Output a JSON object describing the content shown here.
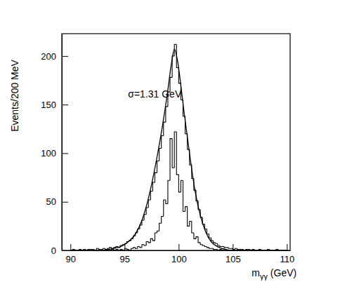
{
  "chart_data": {
    "type": "histogram",
    "annotation": "σ=1.31 GeV",
    "x_label": "mγγ (GeV)",
    "y_label": "Events/200 MeV",
    "xlim": [
      89.2,
      110.3
    ],
    "xticks": [
      90,
      95,
      100,
      105,
      110
    ],
    "ylim": [
      0,
      223
    ],
    "yticks": [
      0,
      50,
      100,
      150,
      200
    ],
    "tick_labels": true,
    "bins": [
      90,
      90.2,
      90.4,
      90.6,
      90.8,
      91,
      91.2,
      91.4,
      91.6,
      91.8,
      92,
      92.2,
      92.4,
      92.6,
      92.8,
      93,
      93.2,
      93.4,
      93.6,
      93.8,
      94,
      94.2,
      94.4,
      94.6,
      94.8,
      95,
      95.2,
      95.4,
      95.6,
      95.8,
      96,
      96.2,
      96.4,
      96.6,
      96.8,
      97,
      97.2,
      97.4,
      97.6,
      97.8,
      98,
      98.2,
      98.4,
      98.6,
      98.8,
      99,
      99.2,
      99.4,
      99.6,
      99.8,
      100,
      100.2,
      100.4,
      100.6,
      100.8,
      101,
      101.2,
      101.4,
      101.6,
      101.8,
      102,
      102.2,
      102.4,
      102.6,
      102.8,
      103,
      103.2,
      103.4,
      103.6,
      103.8,
      104,
      104.2,
      104.4,
      104.6,
      104.8,
      105,
      105.2,
      105.4,
      105.6,
      105.8,
      106,
      106.2,
      106.4,
      106.6,
      106.8,
      107,
      107.2,
      107.4,
      107.6,
      107.8,
      108,
      108.2,
      108.4,
      108.6,
      108.8,
      109,
      109.2,
      109.4,
      109.6,
      109.8,
      110
    ],
    "series": [
      {
        "type": "histogram",
        "color": "#000000",
        "values": [
          0,
          1,
          0,
          0,
          1,
          0,
          1,
          0,
          1,
          1,
          1,
          0,
          2,
          1,
          1,
          2,
          1,
          2,
          3,
          2,
          3,
          4,
          3,
          5,
          6,
          7,
          9,
          10,
          12,
          15,
          18,
          22,
          26,
          31,
          37,
          44,
          52,
          61,
          70,
          80,
          92,
          105,
          118,
          132,
          148,
          163,
          178,
          200,
          212,
          188,
          172,
          155,
          138,
          120,
          104,
          88,
          74,
          62,
          51,
          42,
          34,
          27,
          22,
          17,
          13,
          10,
          8,
          7,
          5,
          4,
          4,
          3,
          3,
          2,
          2,
          1,
          2,
          1,
          1,
          1,
          0,
          1,
          1,
          0,
          1,
          0,
          0,
          1,
          0,
          0,
          0,
          1,
          0,
          0,
          0,
          1,
          0,
          0,
          0,
          0
        ]
      },
      {
        "type": "histogram",
        "color": "#000000",
        "values": [
          0,
          0,
          0,
          0,
          0,
          0,
          0,
          0,
          0,
          0,
          0,
          0,
          0,
          0,
          0,
          0,
          1,
          0,
          0,
          1,
          0,
          1,
          0,
          1,
          0,
          2,
          1,
          0,
          2,
          3,
          2,
          4,
          3,
          6,
          5,
          9,
          8,
          12,
          10,
          18,
          20,
          28,
          35,
          52,
          48,
          72,
          115,
          85,
          122,
          78,
          60,
          72,
          40,
          45,
          25,
          30,
          18,
          12,
          14,
          8,
          6,
          5,
          4,
          3,
          2,
          2,
          1,
          1,
          0,
          1,
          0,
          1,
          0,
          0,
          0,
          0,
          0,
          0,
          0,
          0,
          0,
          0,
          0,
          0,
          0,
          0,
          0,
          0,
          0,
          0,
          0,
          0,
          0,
          0,
          0,
          0,
          0,
          0,
          0,
          0
        ]
      },
      {
        "type": "line",
        "color": "#000000",
        "x": [
          93,
          94,
          95,
          96,
          96.5,
          97,
          97.5,
          98,
          98.5,
          99,
          99.3,
          99.6,
          99.9,
          100.2,
          100.5,
          101,
          101.5,
          102,
          102.5,
          103,
          104,
          105,
          106
        ],
        "values": [
          0,
          2,
          6,
          17,
          28,
          45,
          68,
          96,
          128,
          165,
          190,
          207,
          195,
          170,
          142,
          100,
          62,
          36,
          19,
          9,
          2,
          0,
          0
        ]
      }
    ]
  }
}
